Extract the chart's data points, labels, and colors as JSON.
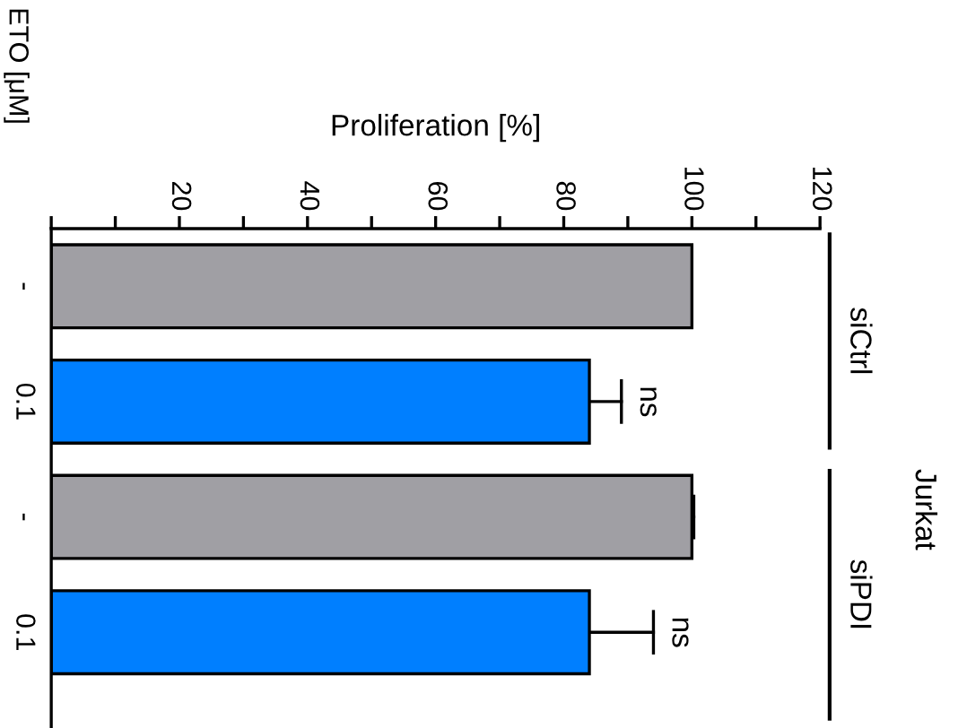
{
  "chart_data": {
    "type": "bar",
    "orientation": "horizontal",
    "title": "Jurkat",
    "xlabel": "Proliferation [%]",
    "ylabel": "ETO [μM]",
    "categories": [
      "-",
      "0.1",
      "-",
      "0.1"
    ],
    "values": [
      100,
      84,
      100,
      84
    ],
    "colors": [
      "#a09fa4",
      "#007fff",
      "#a09fa4",
      "#007fff"
    ],
    "errors": [
      null,
      [
        84,
        89
      ],
      [
        100,
        100.3
      ],
      [
        84,
        94
      ]
    ],
    "xlim": [
      0,
      120
    ],
    "xticks": [
      {
        "value": 0,
        "label": null
      },
      {
        "value": 10,
        "label": null
      },
      20,
      {
        "value": 30,
        "label": null
      },
      40,
      {
        "value": 50,
        "label": null
      },
      60,
      {
        "value": 70,
        "label": null
      },
      80,
      {
        "value": 90,
        "label": null
      },
      100,
      {
        "value": 110,
        "label": null
      },
      120
    ],
    "annotations": [
      "siCtrl",
      "siPDI",
      "ns",
      "ns"
    ],
    "grid": false,
    "legend": false
  }
}
